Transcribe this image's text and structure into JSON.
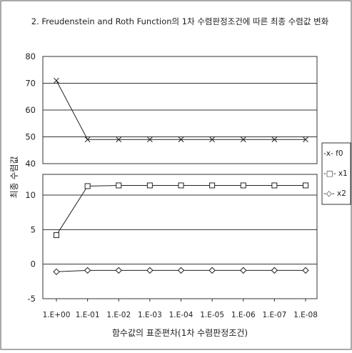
{
  "chart_data": {
    "type": "line",
    "title": "2. Freudenstein and Roth Function의 1차 수렴판정조건에 따른 최종 수렴값 변화",
    "xlabel": "함수값의 표준편차(1차 수렴판정조건)",
    "ylabel": "최종 수렴값",
    "categories": [
      "1.E+00",
      "1.E-01",
      "1.E-02",
      "1.E-03",
      "1.E-04",
      "1.E-05",
      "1.E-06",
      "1.E-07",
      "1.E-08"
    ],
    "upper_axis": {
      "ylim": [
        40,
        80
      ],
      "ticks": [
        "80",
        "70",
        "60",
        "50",
        "40"
      ]
    },
    "lower_axis": {
      "ylim": [
        -5,
        13
      ],
      "ticks": [
        "10",
        "5",
        "0",
        "-5"
      ]
    },
    "series": [
      {
        "name": "f0",
        "legend": "-x- f0",
        "marker": "x",
        "axis": "upper",
        "values": [
          71,
          49,
          49,
          49,
          49,
          49,
          49,
          49,
          49
        ]
      },
      {
        "name": "x1",
        "legend": "-□- x1",
        "marker": "square",
        "axis": "lower",
        "values": [
          4.2,
          11.3,
          11.4,
          11.4,
          11.4,
          11.4,
          11.4,
          11.4,
          11.4
        ]
      },
      {
        "name": "x2",
        "legend": "-◇- x2",
        "marker": "diamond",
        "axis": "lower",
        "values": [
          -1.1,
          -0.9,
          -0.9,
          -0.9,
          -0.9,
          -0.9,
          -0.9,
          -0.9,
          -0.9
        ]
      }
    ],
    "grid": true,
    "legend_position": "right"
  }
}
